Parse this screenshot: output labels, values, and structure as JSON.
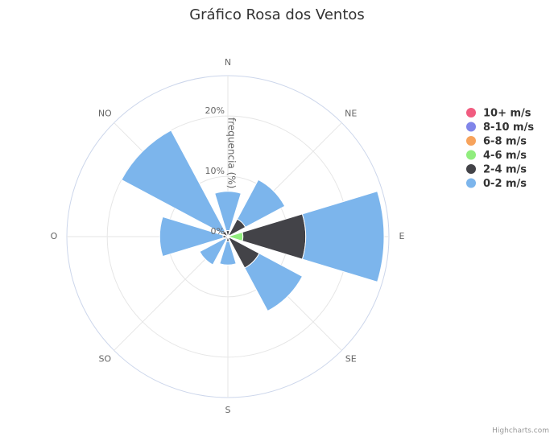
{
  "chart_data": {
    "type": "windrose",
    "title": "Gráfico Rosa dos Ventos",
    "y_axis_title": "frequencia (%)",
    "credits": "Highcharts.com",
    "categories": [
      "N",
      "NE",
      "E",
      "SE",
      "S",
      "SO",
      "O",
      "NO"
    ],
    "series": [
      {
        "name": "10+ m/s",
        "color": "#f15c80",
        "values": [
          0,
          0,
          0,
          0,
          0,
          0,
          0,
          0
        ]
      },
      {
        "name": "8-10 m/s",
        "color": "#8085e9",
        "values": [
          0,
          0,
          0,
          0,
          0,
          0,
          0,
          0
        ]
      },
      {
        "name": "6-8 m/s",
        "color": "#f7a35c",
        "values": [
          0,
          0,
          0,
          0,
          0,
          0,
          0,
          0
        ]
      },
      {
        "name": "4-6 m/s",
        "color": "#90ed7d",
        "values": [
          0,
          0.3,
          2.5,
          0.3,
          0,
          0,
          0,
          0
        ]
      },
      {
        "name": "2-4 m/s",
        "color": "#434348",
        "values": [
          1.0,
          3.0,
          10.4,
          5.6,
          0.8,
          0.5,
          0.8,
          1.0
        ]
      },
      {
        "name": "0-2 m/s",
        "color": "#7cb5ec",
        "values": [
          6.5,
          7.4,
          13.0,
          8.1,
          3.9,
          4.8,
          10.5,
          19.0
        ]
      }
    ],
    "ylim": [
      0,
      26.7
    ],
    "yticks": [
      {
        "value": 0,
        "label": "0%"
      },
      {
        "value": 10,
        "label": "10%"
      },
      {
        "value": 20,
        "label": "20%"
      }
    ],
    "grid": true
  }
}
